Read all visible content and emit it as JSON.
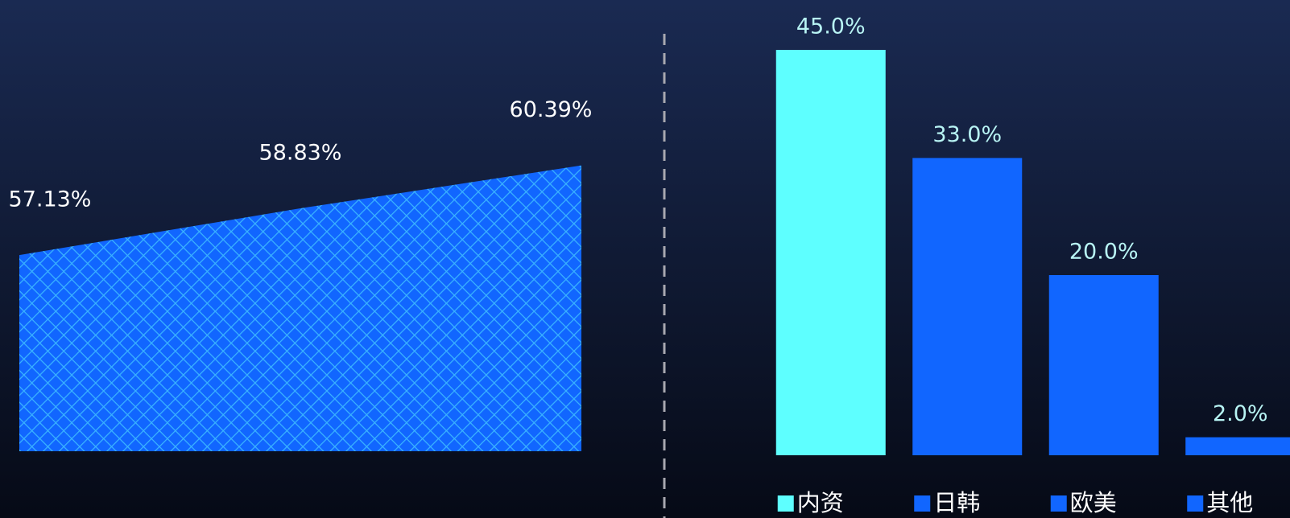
{
  "chart_data": [
    {
      "type": "area",
      "categories": [
        null,
        null,
        null
      ],
      "values": [
        57.13,
        58.83,
        60.39
      ],
      "value_labels": [
        "57.13%",
        "58.83%",
        "60.39%"
      ],
      "color": "#1166ff",
      "ylim": [
        50,
        65
      ]
    },
    {
      "type": "bar",
      "categories": [
        "内资",
        "日韩",
        "欧美",
        "其他"
      ],
      "values": [
        45,
        33,
        20,
        2
      ],
      "value_labels": [
        "45.0%",
        "33.0%",
        "20.0%",
        "2.0%"
      ],
      "colors": [
        "#5effff",
        "#1166ff",
        "#1166ff",
        "#1166ff"
      ],
      "ylim": [
        0,
        50
      ],
      "legend": "bottom"
    }
  ]
}
